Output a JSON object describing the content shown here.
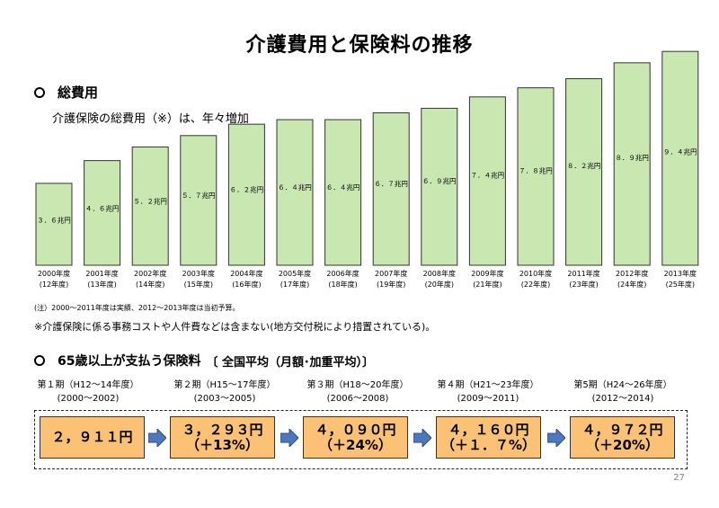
{
  "page_title": "介護費用と保険料の推移",
  "section1": {
    "heading": "総費用",
    "subtitle": "介護保険の総費用（※）は、年々増加",
    "note": "(注）2000～2011年度は実績、2012～2013年度は当初予算。",
    "note2": "※介護保険に係る事務コストや人件費などは含まない(地方交付税により措置されている)。"
  },
  "chart_data": {
    "type": "bar",
    "categories": [
      "2000年度",
      "2001年度",
      "2002年度",
      "2003年度",
      "2004年度",
      "2005年度",
      "2006年度",
      "2007年度",
      "2008年度",
      "2009年度",
      "2010年度",
      "2011年度",
      "2012年度",
      "2013年度"
    ],
    "categories_sub": [
      "(12年度)",
      "(13年度)",
      "(14年度)",
      "(15年度)",
      "(16年度)",
      "(17年度)",
      "(18年度)",
      "(19年度)",
      "(20年度)",
      "(21年度)",
      "(22年度)",
      "(23年度)",
      "(24年度)",
      "(25年度)"
    ],
    "values": [
      3.6,
      4.6,
      5.2,
      5.7,
      6.2,
      6.4,
      6.4,
      6.7,
      6.9,
      7.4,
      7.8,
      8.2,
      8.9,
      9.4
    ],
    "value_labels": [
      "３．６兆円",
      "４．６兆円",
      "５．２兆円",
      "５．７兆円",
      "６．２兆円",
      "６．４兆円",
      "６．４兆円",
      "６．７兆円",
      "６．９兆円",
      "７．４兆円",
      "７．８兆円",
      "８．２兆円",
      "８．９兆円",
      "９．４兆円"
    ],
    "ylim": [
      0,
      9.4
    ],
    "grid": false,
    "bar_color": "#c8e7b1",
    "bar_stroke": "#333333"
  },
  "section2": {
    "heading_main": "65歳以上が支払う保険料",
    "heading_sub": "〔 全国平均（月額･加重平均）〕",
    "periods": [
      {
        "label": "第１期（H12～14年度）",
        "years": "(2000～2002)",
        "amount": "２，９１１円",
        "change": ""
      },
      {
        "label": "第２期（H15～17年度）",
        "years": "(2003～2005)",
        "amount": "３，２９３円",
        "change": "（＋13%）"
      },
      {
        "label": "第３期（H18～20年度）",
        "years": "(2006～2008)",
        "amount": "４，０９０円",
        "change": "（＋24%）"
      },
      {
        "label": "第４期（H21～23年度）",
        "years": "(2009～2011)",
        "amount": "４，１６０円",
        "change": "（＋１．７%）"
      },
      {
        "label": "第5期（H24～26年度）",
        "years": "(2012～2014)",
        "amount": "４，９７２円",
        "change": "（＋20%）"
      }
    ],
    "box_color": "#fbc174",
    "arrow_color": "#4f77be"
  },
  "page_number": "27"
}
